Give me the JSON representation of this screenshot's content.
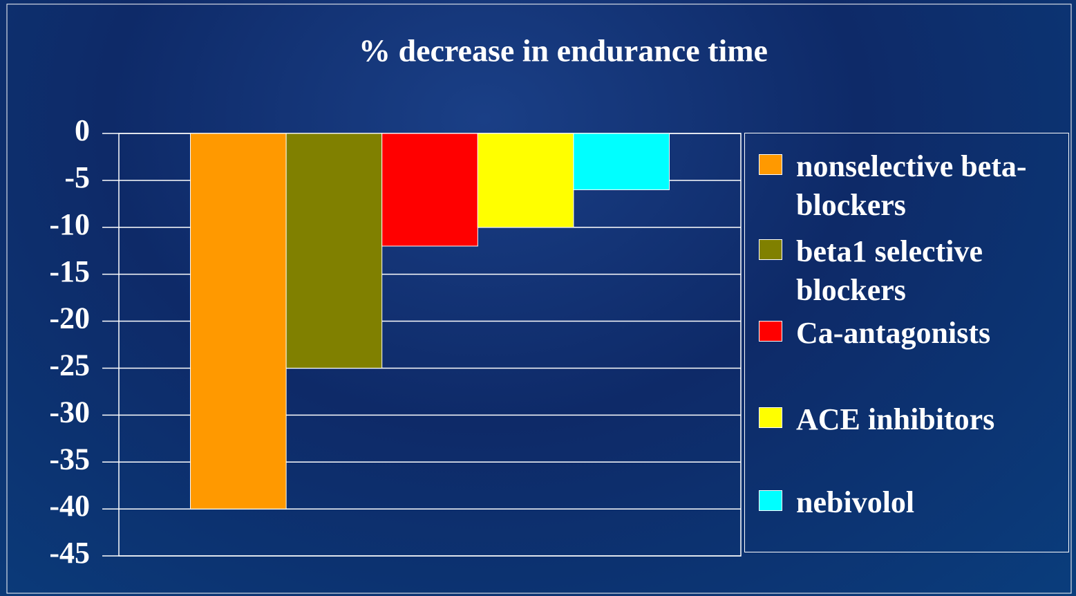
{
  "chart_data": {
    "type": "bar",
    "title": "% decrease in endurance time",
    "categories": [
      null
    ],
    "series": [
      {
        "name": "nonselective beta-blockers",
        "color": "#ff9900",
        "values": [
          -40
        ]
      },
      {
        "name": "beta1 selective blockers",
        "color": "#808000",
        "values": [
          -25
        ]
      },
      {
        "name": "Ca-antagonists",
        "color": "#ff0000",
        "values": [
          -12
        ]
      },
      {
        "name": "ACE inhibitors",
        "color": "#ffff00",
        "values": [
          -10
        ]
      },
      {
        "name": "nebivolol",
        "color": "#00ffff",
        "values": [
          -6
        ]
      }
    ],
    "ylim": [
      -45,
      0
    ],
    "yticks": [
      0,
      -5,
      -10,
      -15,
      -20,
      -25,
      -30,
      -35,
      -40,
      -45
    ],
    "grid": true,
    "legend": "right"
  }
}
